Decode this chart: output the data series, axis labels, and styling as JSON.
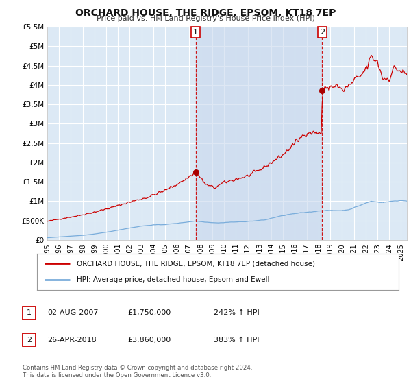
{
  "title": "ORCHARD HOUSE, THE RIDGE, EPSOM, KT18 7EP",
  "subtitle": "Price paid vs. HM Land Registry's House Price Index (HPI)",
  "background_color": "#ffffff",
  "plot_bg_color": "#dce9f5",
  "shade_color": "#c8d8ee",
  "grid_color": "#ffffff",
  "ylim": [
    0,
    5500000
  ],
  "xlim_start": 1995.0,
  "xlim_end": 2025.5,
  "sale1_date": 2007.58,
  "sale1_price": 1750000,
  "sale2_date": 2018.32,
  "sale2_price": 3860000,
  "red_line_color": "#cc0000",
  "blue_line_color": "#7aaddb",
  "marker_color": "#aa0000",
  "dashed_line_color": "#cc0000",
  "legend1": "ORCHARD HOUSE, THE RIDGE, EPSOM, KT18 7EP (detached house)",
  "legend2": "HPI: Average price, detached house, Epsom and Ewell",
  "table_row1": [
    "1",
    "02-AUG-2007",
    "£1,750,000",
    "242% ↑ HPI"
  ],
  "table_row2": [
    "2",
    "26-APR-2018",
    "£3,860,000",
    "383% ↑ HPI"
  ],
  "footer1": "Contains HM Land Registry data © Crown copyright and database right 2024.",
  "footer2": "This data is licensed under the Open Government Licence v3.0.",
  "ytick_labels": [
    "£0",
    "£500K",
    "£1M",
    "£1.5M",
    "£2M",
    "£2.5M",
    "£3M",
    "£3.5M",
    "£4M",
    "£4.5M",
    "£5M",
    "£5.5M"
  ],
  "ytick_values": [
    0,
    500000,
    1000000,
    1500000,
    2000000,
    2500000,
    3000000,
    3500000,
    4000000,
    4500000,
    5000000,
    5500000
  ]
}
